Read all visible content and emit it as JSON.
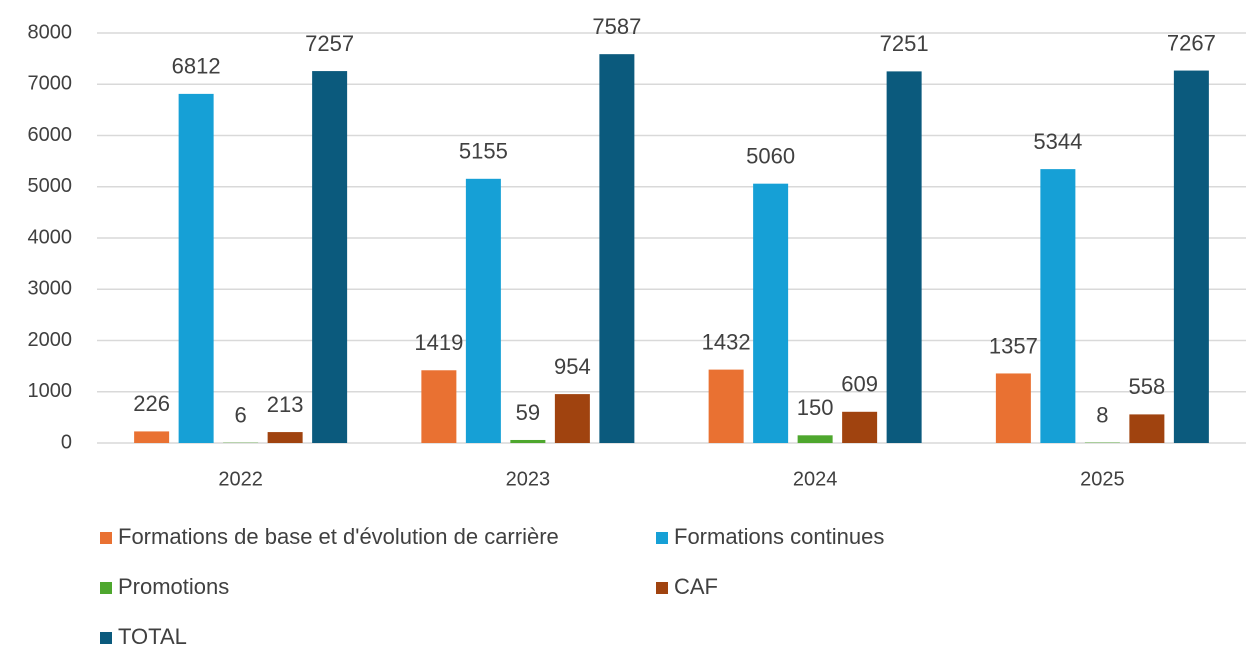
{
  "chart_data": {
    "type": "bar",
    "categories": [
      "2022",
      "2023",
      "2024",
      "2025"
    ],
    "series": [
      {
        "name": "Formations de base et d'évolution de carrière",
        "color": "#e97132",
        "values": [
          226,
          1419,
          1432,
          1357
        ]
      },
      {
        "name": "Formations continues",
        "color": "#16a0d6",
        "values": [
          6812,
          5155,
          5060,
          5344
        ]
      },
      {
        "name": "Promotions",
        "color": "#4ea72e",
        "values": [
          6,
          59,
          150,
          8
        ]
      },
      {
        "name": "CAF",
        "color": "#a0430f",
        "values": [
          213,
          954,
          609,
          558
        ]
      },
      {
        "name": "TOTAL",
        "color": "#0b5a7d",
        "values": [
          7257,
          7587,
          7251,
          7267
        ]
      }
    ],
    "ylim": [
      0,
      8000
    ],
    "yticks": [
      0,
      1000,
      2000,
      3000,
      4000,
      5000,
      6000,
      7000,
      8000
    ],
    "grid": true,
    "legend": "bottom"
  }
}
